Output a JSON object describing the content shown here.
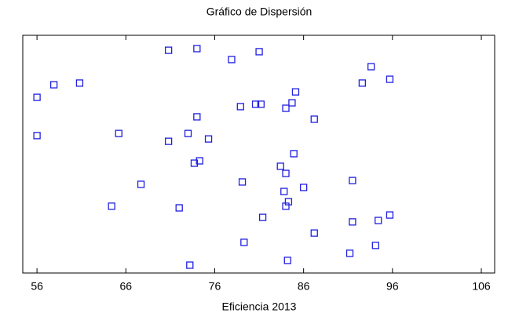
{
  "chart_data": {
    "type": "scatter",
    "title": "Gráfico de Dispersión",
    "x_label": "Eficiencia 2013",
    "color": "#1f1fe0",
    "x": [
      70.8,
      74.0,
      77.9,
      81.0,
      93.6,
      95.7,
      92.6,
      57.9,
      60.8,
      56.0,
      85.1,
      84.7,
      84.0,
      80.6,
      81.2,
      78.9,
      74.0,
      87.2,
      56.0,
      65.2,
      73.0,
      70.8,
      75.3,
      84.9,
      74.3,
      73.7,
      83.4,
      84.0,
      91.5,
      79.1,
      67.7,
      86.0,
      83.8,
      84.3,
      84.0,
      64.4,
      72.0,
      95.7,
      94.4,
      91.5,
      81.4,
      87.2,
      79.3,
      94.1,
      91.2,
      84.2,
      73.2
    ],
    "values": [
      93.7,
      94.4,
      89.8,
      93.1,
      86.8,
      81.5,
      79.9,
      79.2,
      79.9,
      73.9,
      76.2,
      71.6,
      69.3,
      71.0,
      71.0,
      70.0,
      65.7,
      64.7,
      57.8,
      58.7,
      58.7,
      55.4,
      56.4,
      50.2,
      47.2,
      46.2,
      44.9,
      41.9,
      38.9,
      38.3,
      37.3,
      36.0,
      34.3,
      30.0,
      28.1,
      28.1,
      27.4,
      24.4,
      22.1,
      21.5,
      23.4,
      16.8,
      12.9,
      11.6,
      8.3,
      5.3,
      3.3
    ],
    "xlim": [
      54.4,
      107.5
    ],
    "xticks": [
      56,
      66,
      76,
      86,
      96,
      106
    ],
    "ylim": [
      0,
      100
    ]
  }
}
